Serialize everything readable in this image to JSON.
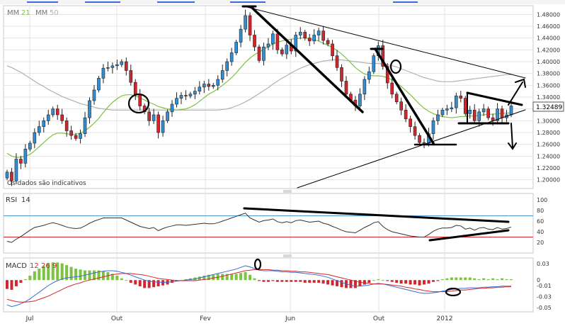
{
  "disclaimer": "Os dados são indicativos",
  "ma_legend": {
    "label": "MM",
    "fast": "21",
    "slow": "50",
    "fast_color": "#7dc242",
    "slow_color": "#b0b0b0"
  },
  "rsi_legend": {
    "label": "RSI",
    "period": "14"
  },
  "macd_legend": {
    "label": "MACD",
    "fast": "12",
    "slow": "26",
    "signal": "9",
    "color": "#d2262f"
  },
  "last_price": "1.32489",
  "colors": {
    "up": "#2f8fd6",
    "down": "#d2262f",
    "grid": "#e3e3e3",
    "frame": "#c8c8c8",
    "rsi_line": "#333333",
    "rsi_upper": "#4a9ad2",
    "rsi_lower": "#d2262f",
    "macd_line": "#3a6bd8",
    "signal_line": "#d2262f",
    "hist_pos": "#7dc242",
    "hist_neg": "#d2262f",
    "annotation": "#000000"
  },
  "chart_data": [
    {
      "type": "candlestick",
      "panel": "price",
      "x_labels": [
        "Jul",
        "Out",
        "Fev",
        "Jun",
        "Out",
        "2012"
      ],
      "ylim": [
        1.19,
        1.49
      ],
      "y_ticks": [
        "1.48000",
        "1.46000",
        "1.44000",
        "1.42000",
        "1.40000",
        "1.38000",
        "1.36000",
        "1.34000",
        "1.32000",
        "1.30000",
        "1.28000",
        "1.26000",
        "1.24000",
        "1.22000",
        "1.20000"
      ],
      "y_tick_values": [
        1.48,
        1.46,
        1.44,
        1.42,
        1.4,
        1.38,
        1.36,
        1.34,
        1.32,
        1.3,
        1.28,
        1.26,
        1.24,
        1.22,
        1.2
      ],
      "closes": [
        1.213,
        1.198,
        1.235,
        1.228,
        1.252,
        1.262,
        1.28,
        1.29,
        1.3,
        1.31,
        1.32,
        1.31,
        1.3,
        1.283,
        1.275,
        1.27,
        1.278,
        1.305,
        1.334,
        1.352,
        1.372,
        1.389,
        1.39,
        1.393,
        1.395,
        1.4,
        1.385,
        1.365,
        1.345,
        1.325,
        1.315,
        1.3,
        1.31,
        1.28,
        1.3,
        1.315,
        1.328,
        1.338,
        1.343,
        1.342,
        1.345,
        1.35,
        1.357,
        1.362,
        1.358,
        1.36,
        1.37,
        1.385,
        1.4,
        1.415,
        1.433,
        1.455,
        1.478,
        1.445,
        1.425,
        1.402,
        1.425,
        1.43,
        1.447,
        1.42,
        1.413,
        1.428,
        1.418,
        1.445,
        1.45,
        1.44,
        1.435,
        1.445,
        1.452,
        1.436,
        1.43,
        1.41,
        1.39,
        1.367,
        1.345,
        1.335,
        1.325,
        1.345,
        1.37,
        1.383,
        1.41,
        1.427,
        1.392,
        1.364,
        1.345,
        1.332,
        1.318,
        1.303,
        1.29,
        1.275,
        1.263,
        1.262,
        1.278,
        1.3,
        1.31,
        1.318,
        1.32,
        1.322,
        1.342,
        1.338,
        1.312,
        1.318,
        1.3,
        1.315,
        1.32,
        1.305,
        1.3,
        1.32,
        1.305,
        1.31,
        1.325
      ],
      "ma_fast": [
        1.245,
        1.24,
        1.238,
        1.238,
        1.24,
        1.243,
        1.249,
        1.256,
        1.263,
        1.27,
        1.276,
        1.279,
        1.279,
        1.278,
        1.277,
        1.277,
        1.279,
        1.283,
        1.289,
        1.296,
        1.304,
        1.314,
        1.323,
        1.331,
        1.337,
        1.342,
        1.344,
        1.344,
        1.342,
        1.339,
        1.335,
        1.331,
        1.328,
        1.324,
        1.322,
        1.32,
        1.319,
        1.318,
        1.319,
        1.32,
        1.323,
        1.327,
        1.333,
        1.339,
        1.345,
        1.349,
        1.354,
        1.36,
        1.366,
        1.373,
        1.381,
        1.39,
        1.399,
        1.406,
        1.412,
        1.416,
        1.421,
        1.425,
        1.43,
        1.433,
        1.435,
        1.437,
        1.438,
        1.439,
        1.44,
        1.44,
        1.439,
        1.437,
        1.435,
        1.431,
        1.428,
        1.424,
        1.419,
        1.413,
        1.406,
        1.398,
        1.39,
        1.384,
        1.379,
        1.377,
        1.376,
        1.376,
        1.375,
        1.373,
        1.369,
        1.364,
        1.358,
        1.351,
        1.344,
        1.336,
        1.328,
        1.321,
        1.316,
        1.312,
        1.309,
        1.307,
        1.306,
        1.305,
        1.306,
        1.307,
        1.307,
        1.308,
        1.308,
        1.309,
        1.31,
        1.311,
        1.311,
        1.312,
        1.312,
        1.313,
        1.313
      ],
      "ma_slow": [
        1.393,
        1.39,
        1.386,
        1.382,
        1.377,
        1.372,
        1.367,
        1.362,
        1.358,
        1.353,
        1.349,
        1.345,
        1.341,
        1.338,
        1.335,
        1.332,
        1.329,
        1.327,
        1.325,
        1.323,
        1.321,
        1.32,
        1.319,
        1.318,
        1.318,
        1.318,
        1.318,
        1.318,
        1.318,
        1.318,
        1.318,
        1.318,
        1.318,
        1.318,
        1.318,
        1.318,
        1.318,
        1.318,
        1.318,
        1.318,
        1.318,
        1.318,
        1.318,
        1.318,
        1.318,
        1.318,
        1.318,
        1.319,
        1.32,
        1.322,
        1.325,
        1.328,
        1.332,
        1.336,
        1.341,
        1.346,
        1.351,
        1.356,
        1.362,
        1.367,
        1.372,
        1.376,
        1.381,
        1.385,
        1.389,
        1.392,
        1.395,
        1.397,
        1.399,
        1.401,
        1.402,
        1.403,
        1.403,
        1.403,
        1.402,
        1.401,
        1.4,
        1.399,
        1.398,
        1.397,
        1.397,
        1.397,
        1.396,
        1.395,
        1.393,
        1.391,
        1.388,
        1.385,
        1.382,
        1.379,
        1.376,
        1.373,
        1.371,
        1.369,
        1.367,
        1.366,
        1.366,
        1.366,
        1.367,
        1.368,
        1.369,
        1.37,
        1.371,
        1.372,
        1.373,
        1.374,
        1.375,
        1.376,
        1.377,
        1.378,
        1.378
      ]
    },
    {
      "type": "line",
      "panel": "rsi",
      "ylim": [
        0,
        100
      ],
      "y_ticks": [
        "100",
        "80",
        "60",
        "40",
        "20"
      ],
      "y_tick_values": [
        100,
        80,
        60,
        40,
        20
      ],
      "levels": [
        70,
        30
      ],
      "values": [
        22,
        20,
        26,
        31,
        37,
        43,
        48,
        50,
        52,
        55,
        57,
        55,
        52,
        49,
        47,
        46,
        47,
        51,
        56,
        60,
        63,
        66,
        66,
        66,
        66,
        66,
        62,
        58,
        54,
        50,
        48,
        46,
        48,
        42,
        46,
        49,
        51,
        53,
        53,
        52,
        53,
        54,
        55,
        56,
        55,
        55,
        57,
        60,
        63,
        66,
        69,
        72,
        75,
        66,
        62,
        58,
        61,
        62,
        64,
        59,
        57,
        59,
        57,
        61,
        62,
        60,
        58,
        59,
        60,
        56,
        54,
        50,
        47,
        43,
        40,
        39,
        38,
        43,
        48,
        52,
        57,
        59,
        50,
        44,
        40,
        38,
        36,
        34,
        32,
        31,
        30,
        30,
        35,
        41,
        45,
        47,
        47,
        48,
        52,
        51,
        45,
        47,
        43,
        47,
        48,
        45,
        44,
        48,
        45,
        46,
        49
      ]
    },
    {
      "type": "line",
      "panel": "macd",
      "ylim": [
        -0.055,
        0.035
      ],
      "y_ticks": [
        "0.03",
        "0",
        "-0.01",
        "-0.03",
        "-0.05"
      ],
      "y_tick_values": [
        0.03,
        0,
        -0.01,
        -0.03,
        -0.05
      ],
      "macd": [
        -0.045,
        -0.048,
        -0.046,
        -0.043,
        -0.039,
        -0.034,
        -0.028,
        -0.022,
        -0.016,
        -0.01,
        -0.005,
        -0.001,
        0.002,
        0.004,
        0.005,
        0.006,
        0.007,
        0.009,
        0.011,
        0.013,
        0.015,
        0.016,
        0.017,
        0.017,
        0.016,
        0.014,
        0.012,
        0.009,
        0.006,
        0.003,
        0.0,
        -0.002,
        -0.003,
        -0.004,
        -0.004,
        -0.004,
        -0.003,
        -0.002,
        -0.001,
        0.0,
        0.001,
        0.002,
        0.004,
        0.006,
        0.008,
        0.01,
        0.012,
        0.014,
        0.016,
        0.018,
        0.02,
        0.023,
        0.026,
        0.024,
        0.021,
        0.018,
        0.017,
        0.017,
        0.017,
        0.016,
        0.015,
        0.015,
        0.014,
        0.014,
        0.013,
        0.012,
        0.011,
        0.01,
        0.009,
        0.007,
        0.005,
        0.002,
        -0.001,
        -0.004,
        -0.007,
        -0.009,
        -0.011,
        -0.011,
        -0.01,
        -0.009,
        -0.007,
        -0.006,
        -0.007,
        -0.009,
        -0.011,
        -0.013,
        -0.015,
        -0.017,
        -0.019,
        -0.021,
        -0.023,
        -0.024,
        -0.024,
        -0.023,
        -0.022,
        -0.02,
        -0.019,
        -0.017,
        -0.016,
        -0.015,
        -0.015,
        -0.014,
        -0.014,
        -0.014,
        -0.013,
        -0.013,
        -0.012,
        -0.012,
        -0.011,
        -0.011,
        -0.011
      ],
      "signal": [
        -0.035,
        -0.037,
        -0.039,
        -0.04,
        -0.04,
        -0.039,
        -0.038,
        -0.035,
        -0.032,
        -0.029,
        -0.025,
        -0.021,
        -0.017,
        -0.013,
        -0.01,
        -0.007,
        -0.005,
        -0.002,
        0.0,
        0.002,
        0.004,
        0.006,
        0.008,
        0.01,
        0.011,
        0.012,
        0.012,
        0.012,
        0.011,
        0.01,
        0.009,
        0.007,
        0.005,
        0.003,
        0.002,
        0.001,
        0.0,
        -0.001,
        -0.001,
        -0.001,
        -0.001,
        -0.001,
        0.0,
        0.001,
        0.002,
        0.004,
        0.005,
        0.007,
        0.009,
        0.011,
        0.013,
        0.015,
        0.017,
        0.018,
        0.019,
        0.019,
        0.019,
        0.019,
        0.018,
        0.018,
        0.017,
        0.017,
        0.016,
        0.016,
        0.015,
        0.015,
        0.014,
        0.013,
        0.012,
        0.011,
        0.01,
        0.008,
        0.006,
        0.004,
        0.002,
        0.0,
        -0.002,
        -0.004,
        -0.005,
        -0.006,
        -0.007,
        -0.007,
        -0.007,
        -0.008,
        -0.009,
        -0.01,
        -0.011,
        -0.013,
        -0.014,
        -0.016,
        -0.017,
        -0.019,
        -0.02,
        -0.021,
        -0.021,
        -0.021,
        -0.021,
        -0.02,
        -0.019,
        -0.018,
        -0.018,
        -0.017,
        -0.016,
        -0.015,
        -0.015,
        -0.014,
        -0.014,
        -0.013,
        -0.013,
        -0.012,
        -0.012
      ]
    }
  ]
}
